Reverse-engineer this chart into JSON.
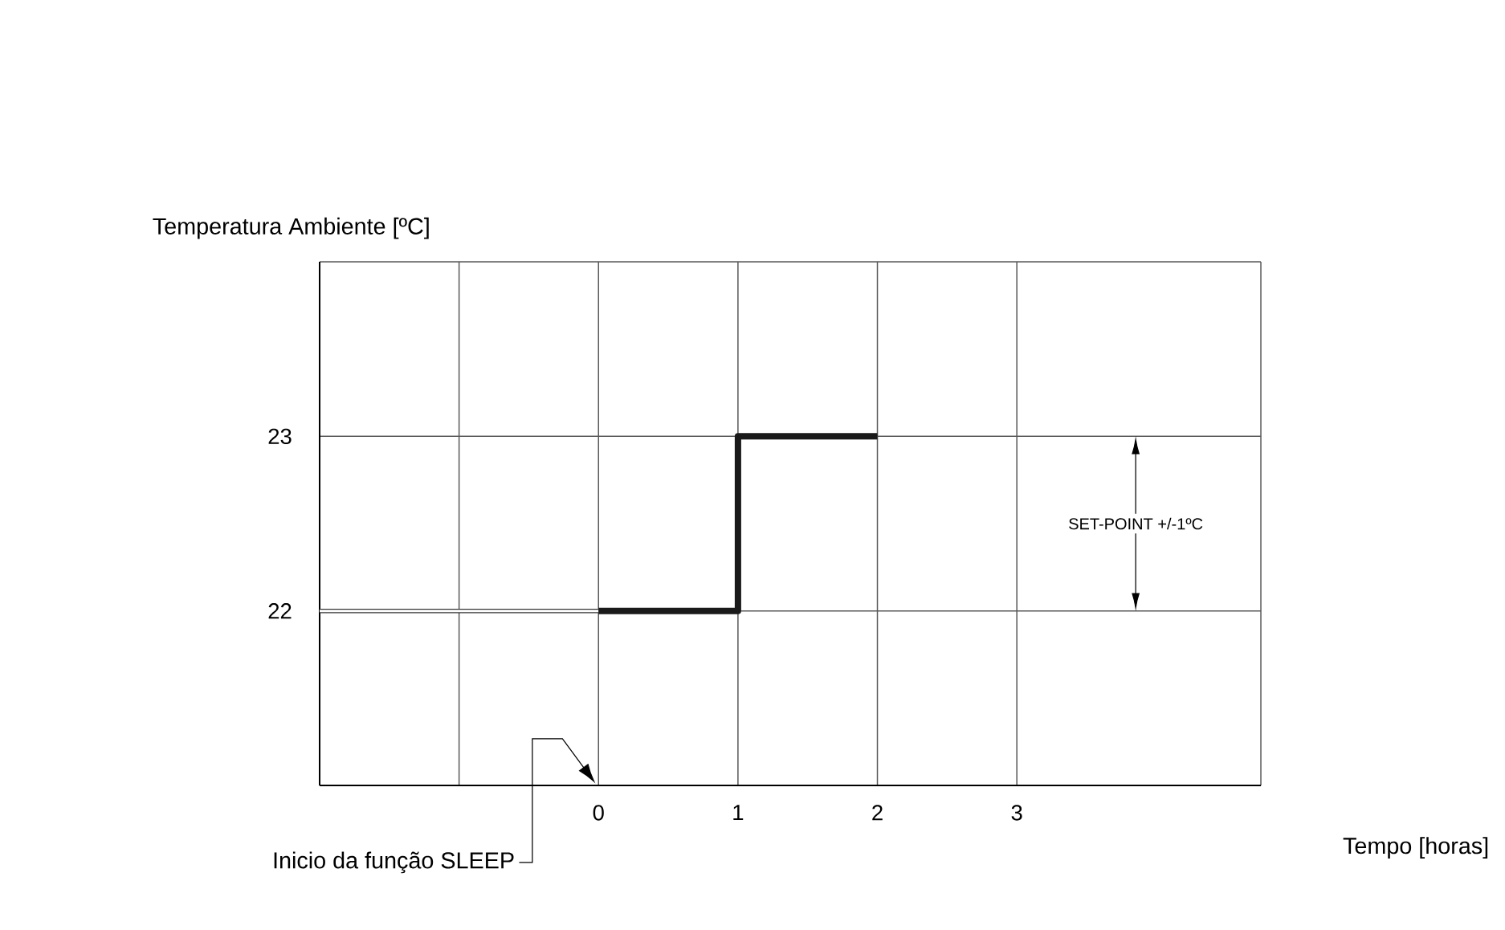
{
  "chart_data": {
    "type": "step",
    "xlabel": "Tempo [horas]",
    "ylabel": "Temperatura Ambiente [ºC]",
    "xlim": [
      -2,
      4.75
    ],
    "ylim": [
      21,
      24
    ],
    "xticks": [
      {
        "value": -2,
        "label": null
      },
      {
        "value": -1,
        "label": null
      },
      0,
      1,
      2,
      3,
      {
        "value": 4.75,
        "label": null
      }
    ],
    "yticks": [
      22,
      23,
      {
        "value": 24,
        "label": null
      }
    ],
    "grid": true,
    "series": [
      {
        "type": "line",
        "color": "#333333",
        "x": [
          -2,
          0
        ],
        "values": [
          22,
          22
        ]
      },
      {
        "color": "#1a1a1a",
        "x": [
          0,
          1,
          2
        ],
        "values": [
          22,
          23,
          23
        ]
      }
    ],
    "annotations": [
      "Inicio da função SLEEP",
      "SET-POINT +/-1ºC"
    ]
  }
}
